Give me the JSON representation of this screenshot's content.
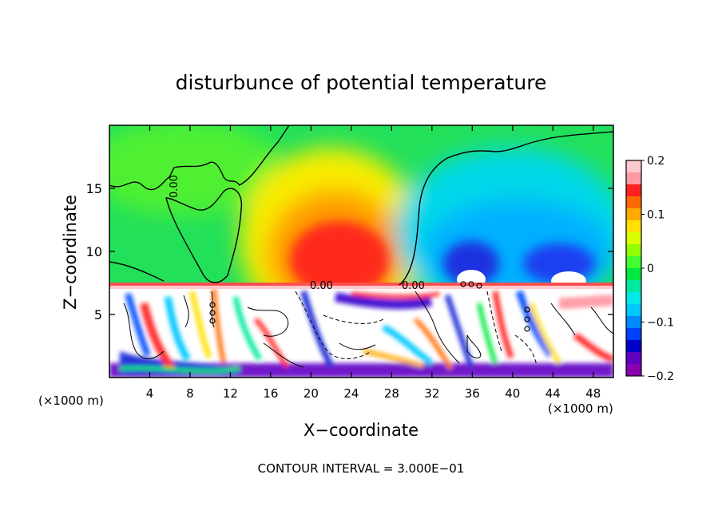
{
  "chart_data": {
    "type": "heatmap",
    "title": "disturbunce of potential temperature",
    "xlabel": "X−coordinate",
    "ylabel": "Z−coordinate",
    "x_unit": "(×1000 m)",
    "y_unit": "(×1000 m)",
    "footer": "CONTOUR INTERVAL = 3.000E−01",
    "xlim": [
      0,
      50
    ],
    "ylim": [
      0,
      20
    ],
    "x_ticks": [
      4,
      8,
      12,
      16,
      20,
      24,
      28,
      32,
      36,
      40,
      44,
      48
    ],
    "y_ticks": [
      5,
      10,
      15
    ],
    "colorbar": {
      "range": [
        -0.2,
        0.2
      ],
      "ticks": [
        "0.2",
        "0.1",
        "0",
        "−0.1",
        "−0.2"
      ],
      "colors": [
        "#ffc8cc",
        "#ff9aa4",
        "#ff2020",
        "#ff6a00",
        "#ffaa00",
        "#ffe000",
        "#d8ff00",
        "#90ff00",
        "#40ff30",
        "#00e840",
        "#00e8a0",
        "#00e8e8",
        "#00c8ff",
        "#0088ff",
        "#0040ff",
        "#0000c8",
        "#6000c0",
        "#8a00b0"
      ]
    },
    "contour_labels": [
      "0.00",
      "0.00",
      "0.00"
    ],
    "features": [
      {
        "type": "warm_anomaly",
        "x": 22.5,
        "z": 10.5,
        "value": 0.17
      },
      {
        "type": "cold_anomaly",
        "x": 35.5,
        "z": 9.0,
        "value": -0.16
      },
      {
        "type": "cold_anomaly",
        "x": 45,
        "z": 9.5,
        "value": -0.14
      },
      {
        "type": "saturated_layer",
        "z_range": [
          0,
          7.2
        ],
        "note": "values outside [-0.2, 0.2]"
      }
    ],
    "grid": false,
    "legend": "colorbar-right"
  }
}
